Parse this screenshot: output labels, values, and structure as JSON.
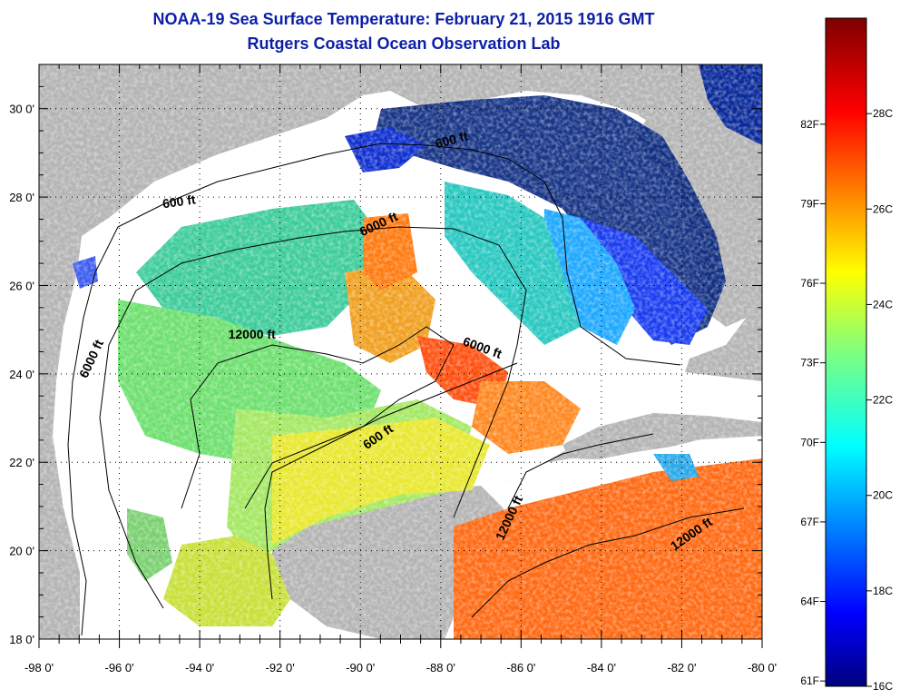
{
  "title": "NOAA-19 Sea Surface Temperature:  February 21, 2015 1916 GMT",
  "subtitle": "Rutgers Coastal Ocean Observation Lab",
  "lon_ticks": [
    "-98 0'",
    "-96 0'",
    "-94 0'",
    "-92 0'",
    "-90 0'",
    "-88 0'",
    "-86 0'",
    "-84 0'",
    "-82 0'",
    "-80 0'"
  ],
  "lat_ticks": [
    "30 0'",
    "28 0'",
    "26 0'",
    "24 0'",
    "22 0'",
    "20 0'",
    "18 0'"
  ],
  "lon_range": [
    -98,
    -80
  ],
  "lat_range": [
    18,
    31
  ],
  "contour_labels": [
    {
      "text": "600 ft",
      "lon": -87.7,
      "lat": 29.2,
      "rot": -15
    },
    {
      "text": "600 ft",
      "lon": -94.5,
      "lat": 27.8,
      "rot": -8
    },
    {
      "text": "6000 ft",
      "lon": -89.5,
      "lat": 27.3,
      "rot": -25
    },
    {
      "text": "12000 ft",
      "lon": -92.7,
      "lat": 24.8,
      "rot": 0
    },
    {
      "text": "6000 ft",
      "lon": -96.6,
      "lat": 24.3,
      "rot": -65
    },
    {
      "text": "6000 ft",
      "lon": -87.0,
      "lat": 24.5,
      "rot": 20
    },
    {
      "text": "600 ft",
      "lon": -89.5,
      "lat": 22.5,
      "rot": -35
    },
    {
      "text": "12000 ft",
      "lon": -86.2,
      "lat": 20.7,
      "rot": -65
    },
    {
      "text": "12000 ft",
      "lon": -81.7,
      "lat": 20.3,
      "rot": -35
    }
  ],
  "colorbar": {
    "celsius_range": [
      16,
      30
    ],
    "fahrenheit_labels": [
      "82F",
      "79F",
      "76F",
      "73F",
      "70F",
      "67F",
      "64F",
      "61F"
    ],
    "celsius_labels": [
      "28C",
      "26C",
      "24C",
      "22C",
      "20C",
      "18C",
      "16C"
    ],
    "fahrenheit_values": [
      82,
      79,
      76,
      73,
      70,
      67,
      64,
      61
    ],
    "celsius_values": [
      28,
      26,
      24,
      22,
      20,
      18,
      16
    ]
  },
  "colors": {
    "land": "#b4b4b4",
    "nodata": "#ffffff",
    "title": "#0d1fa8"
  }
}
